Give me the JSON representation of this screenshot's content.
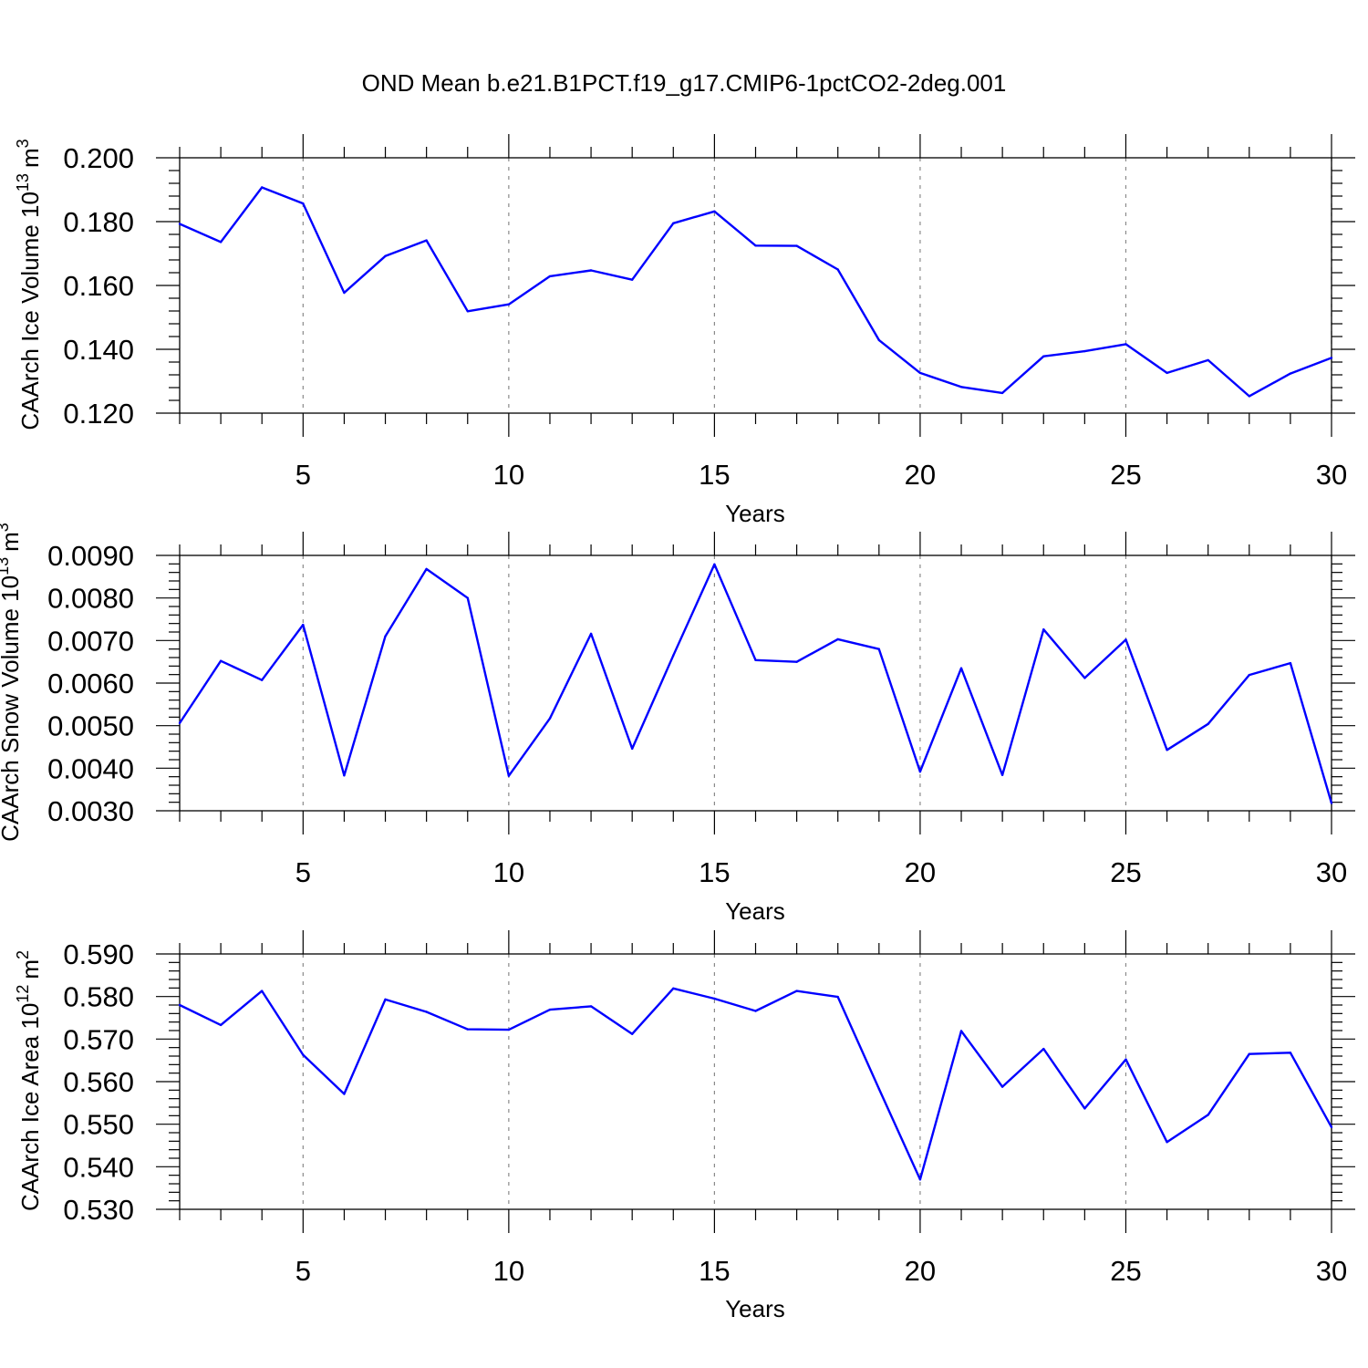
{
  "title": "OND Mean b.e21.B1PCT.f19_g17.CMIP6-1pctCO2-2deg.001",
  "line_color": "#0000ff",
  "chart_data": [
    {
      "type": "line",
      "title": "OND Mean b.e21.B1PCT.f19_g17.CMIP6-1pctCO2-2deg.001",
      "ylabel_text": "CAArch Ice Volume 10",
      "ylabel_exp": "13",
      "ylabel_unit": "m",
      "ylabel_unit_exp": "3",
      "xlabel": "Years",
      "xlim": [
        2,
        30
      ],
      "ylim": [
        0.12,
        0.2
      ],
      "grid": "vertical dashed at major x ticks",
      "x_ticks": [
        5,
        10,
        15,
        20,
        25,
        30
      ],
      "x_tick_labels": [
        "5",
        "10",
        "15",
        "20",
        "25",
        "30"
      ],
      "y_ticks": [
        0.12,
        0.14,
        0.16,
        0.18,
        0.2
      ],
      "y_tick_labels": [
        "0.120",
        "0.140",
        "0.160",
        "0.180",
        "0.200"
      ],
      "y_minor_step": 0.004,
      "series": [
        {
          "name": "CAArch Ice Volume",
          "x": [
            2,
            3,
            4,
            5,
            6,
            7,
            8,
            9,
            10,
            11,
            12,
            13,
            14,
            15,
            16,
            17,
            18,
            19,
            20,
            21,
            22,
            23,
            24,
            25,
            26,
            27,
            28,
            29,
            30
          ],
          "values": [
            0.1793,
            0.1736,
            0.1907,
            0.1857,
            0.1577,
            0.1692,
            0.1741,
            0.1519,
            0.1541,
            0.1629,
            0.1647,
            0.1618,
            0.1795,
            0.1832,
            0.1725,
            0.1724,
            0.165,
            0.1429,
            0.1326,
            0.1282,
            0.1263,
            0.1378,
            0.1394,
            0.1416,
            0.1326,
            0.1366,
            0.1253,
            0.1324,
            0.1373
          ]
        }
      ]
    },
    {
      "type": "line",
      "ylabel_text": "CAArch Snow Volume 10",
      "ylabel_exp": "13",
      "ylabel_unit": "m",
      "ylabel_unit_exp": "3",
      "xlabel": "Years",
      "xlim": [
        2,
        30
      ],
      "ylim": [
        0.003,
        0.009
      ],
      "grid": "vertical dashed at major x ticks",
      "x_ticks": [
        5,
        10,
        15,
        20,
        25,
        30
      ],
      "x_tick_labels": [
        "5",
        "10",
        "15",
        "20",
        "25",
        "30"
      ],
      "y_ticks": [
        0.003,
        0.004,
        0.005,
        0.006,
        0.007,
        0.008,
        0.009
      ],
      "y_tick_labels": [
        "0.0030",
        "0.0040",
        "0.0050",
        "0.0060",
        "0.0070",
        "0.0080",
        "0.0090"
      ],
      "y_minor_step": 0.0002,
      "series": [
        {
          "name": "CAArch Snow Volume",
          "x": [
            2,
            3,
            4,
            5,
            6,
            7,
            8,
            9,
            10,
            11,
            12,
            13,
            14,
            15,
            16,
            17,
            18,
            19,
            20,
            21,
            22,
            23,
            24,
            25,
            26,
            27,
            28,
            29,
            30
          ],
          "values": [
            0.00506,
            0.00652,
            0.00607,
            0.00737,
            0.00383,
            0.0071,
            0.00868,
            0.008,
            0.00382,
            0.00517,
            0.00716,
            0.00446,
            0.00665,
            0.00879,
            0.00654,
            0.0065,
            0.00703,
            0.0068,
            0.00392,
            0.00635,
            0.00384,
            0.00726,
            0.00612,
            0.00702,
            0.00443,
            0.00504,
            0.00619,
            0.00647,
            0.00318
          ]
        }
      ]
    },
    {
      "type": "line",
      "ylabel_text": "CAArch Ice Area 10",
      "ylabel_exp": "12",
      "ylabel_unit": "m",
      "ylabel_unit_exp": "2",
      "xlabel": "Years",
      "xlim": [
        2,
        30
      ],
      "ylim": [
        0.53,
        0.59
      ],
      "grid": "vertical dashed at major x ticks",
      "x_ticks": [
        5,
        10,
        15,
        20,
        25,
        30
      ],
      "x_tick_labels": [
        "5",
        "10",
        "15",
        "20",
        "25",
        "30"
      ],
      "y_ticks": [
        0.53,
        0.54,
        0.55,
        0.56,
        0.57,
        0.58,
        0.59
      ],
      "y_tick_labels": [
        "0.530",
        "0.540",
        "0.550",
        "0.560",
        "0.570",
        "0.580",
        "0.590"
      ],
      "y_minor_step": 0.002,
      "series": [
        {
          "name": "CAArch Ice Area",
          "x": [
            2,
            3,
            4,
            5,
            6,
            7,
            8,
            9,
            10,
            11,
            12,
            13,
            14,
            15,
            16,
            17,
            18,
            19,
            20,
            21,
            22,
            23,
            24,
            25,
            26,
            27,
            28,
            29,
            30
          ],
          "values": [
            0.578,
            0.5733,
            0.5813,
            0.5663,
            0.5571,
            0.5793,
            0.5764,
            0.5723,
            0.5722,
            0.5769,
            0.5777,
            0.5712,
            0.5819,
            0.5795,
            0.5766,
            0.5813,
            0.5799,
            0.5583,
            0.537,
            0.5719,
            0.5588,
            0.5677,
            0.5537,
            0.5652,
            0.5458,
            0.5522,
            0.5665,
            0.5668,
            0.5493
          ]
        }
      ]
    }
  ]
}
